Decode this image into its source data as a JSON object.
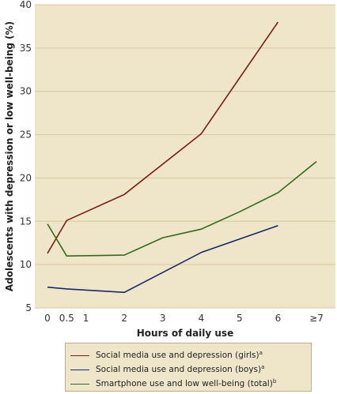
{
  "chart_data": {
    "type": "line",
    "title": "",
    "xlabel": "Hours of daily use",
    "ylabel": "Adolescents with depression or low well-being (%)",
    "ylim": [
      5,
      40
    ],
    "yticks": [
      5,
      10,
      15,
      20,
      25,
      30,
      35,
      40
    ],
    "xticks": [
      {
        "value": 0,
        "label": "0"
      },
      {
        "value": 0.5,
        "label": "0.5"
      },
      {
        "value": 1,
        "label": "1"
      },
      {
        "value": 2,
        "label": "2"
      },
      {
        "value": 3,
        "label": "3"
      },
      {
        "value": 4,
        "label": "4"
      },
      {
        "value": 5,
        "label": "5"
      },
      {
        "value": 6,
        "label": "6"
      },
      {
        "value": 7,
        "label": "≥7"
      }
    ],
    "grid": "horizontal",
    "background_color": "#efe5c8",
    "series": [
      {
        "name": "Social media use and depression (girls)",
        "note": "a",
        "color": "#7b1a14",
        "x": [
          0,
          0.5,
          2,
          4,
          6
        ],
        "y": [
          11.3,
          15.1,
          18.1,
          25.1,
          38.0
        ]
      },
      {
        "name": "Social media use and depression (boys)",
        "note": "a",
        "color": "#17296b",
        "x": [
          0,
          0.5,
          2,
          4,
          6
        ],
        "y": [
          7.4,
          7.2,
          6.8,
          11.4,
          14.5
        ]
      },
      {
        "name": "Smartphone use and low well-being (total)",
        "note": "b",
        "color": "#2f6b1b",
        "x": [
          0,
          0.5,
          2,
          3,
          4,
          5,
          6,
          7
        ],
        "y": [
          14.7,
          11.0,
          11.1,
          13.1,
          14.1,
          16.1,
          18.3,
          21.9
        ]
      }
    ]
  }
}
